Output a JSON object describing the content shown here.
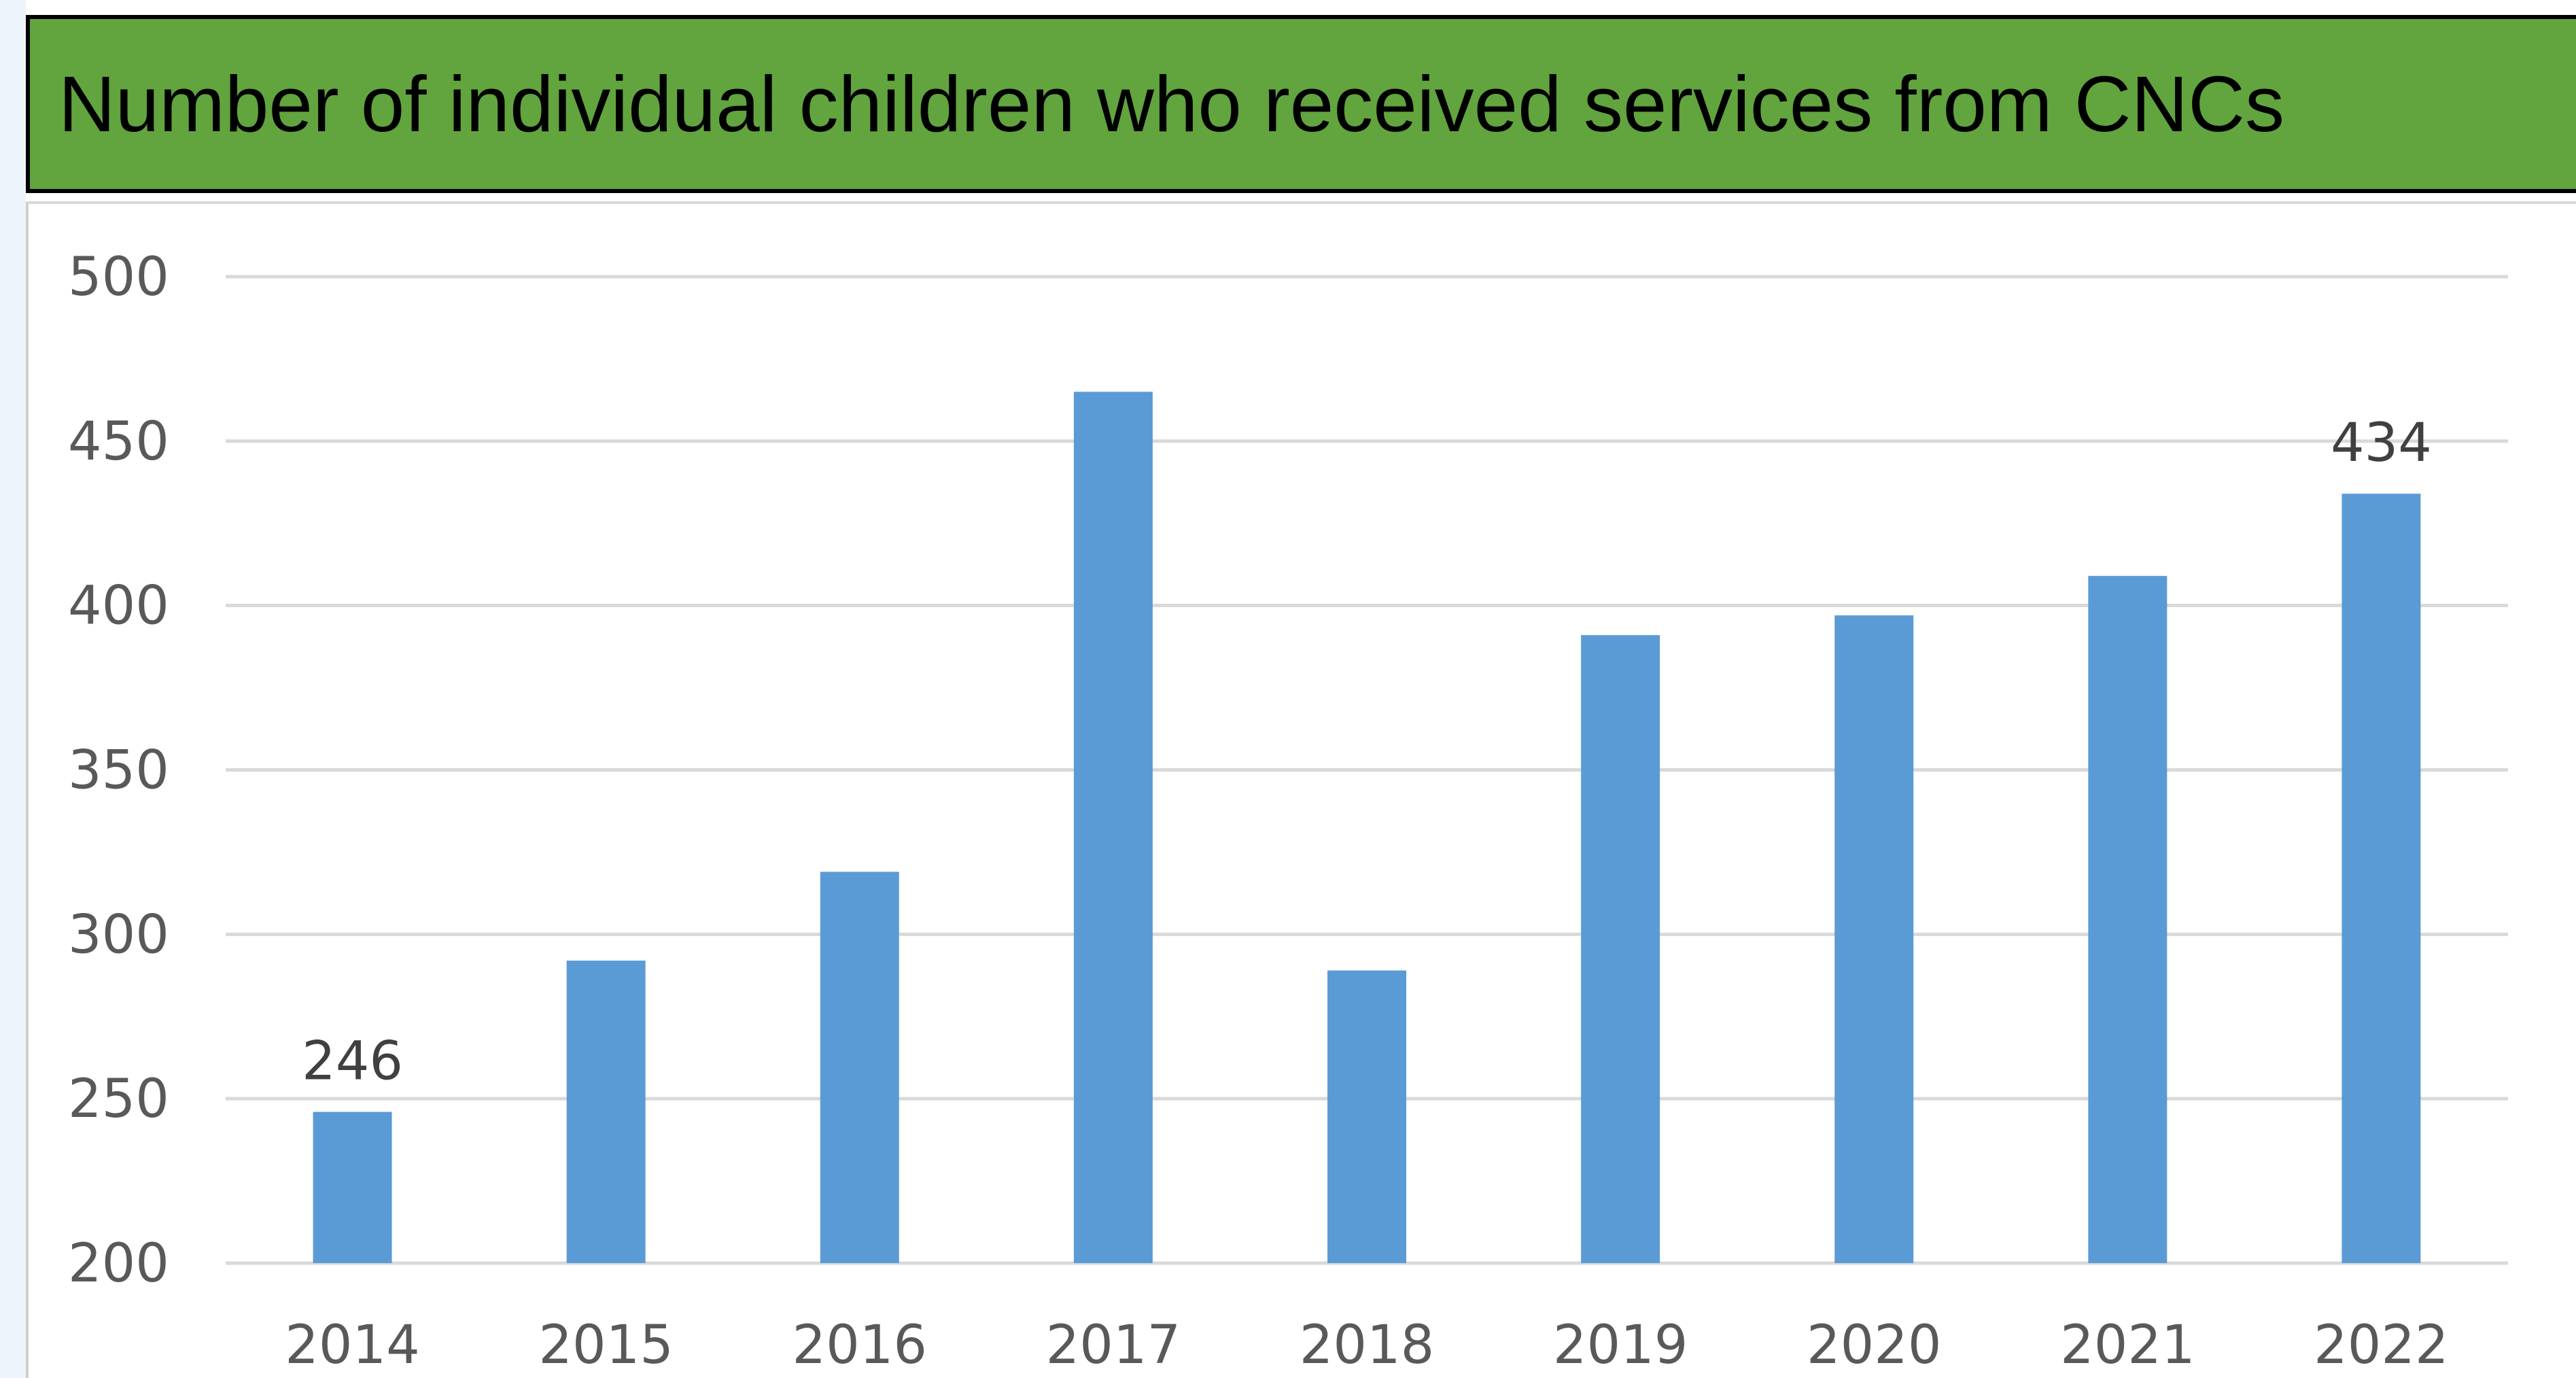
{
  "chart_data": {
    "type": "bar",
    "title": "Number of individual children who received services from CNCs",
    "xlabel": "",
    "ylabel": "",
    "categories": [
      "2014",
      "2015",
      "2016",
      "2017",
      "2018",
      "2019",
      "2020",
      "2021",
      "2022"
    ],
    "values": [
      246,
      292,
      319,
      465,
      289,
      391,
      397,
      409,
      434
    ],
    "data_labels": [
      {
        "category": "2014",
        "text": "246"
      },
      {
        "category": "2022",
        "text": "434"
      }
    ],
    "ylim": [
      200,
      500
    ],
    "yticks": [
      "200",
      "250",
      "300",
      "350",
      "400",
      "450",
      "500"
    ],
    "grid": true,
    "legend": "none",
    "colors": {
      "bar": "#5b9bd5",
      "header_background": "#62a43e",
      "gridline": "#d9d9d9"
    }
  }
}
